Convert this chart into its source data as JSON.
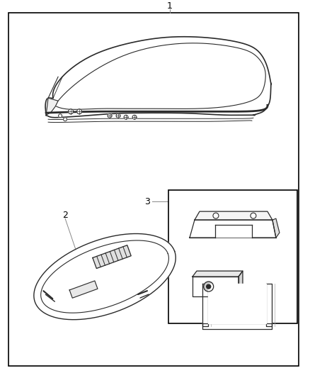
{
  "bg_color": "#ffffff",
  "border_color": "#000000",
  "line_color": "#2a2a2a",
  "fig_width": 4.38,
  "fig_height": 5.33,
  "dpi": 100
}
